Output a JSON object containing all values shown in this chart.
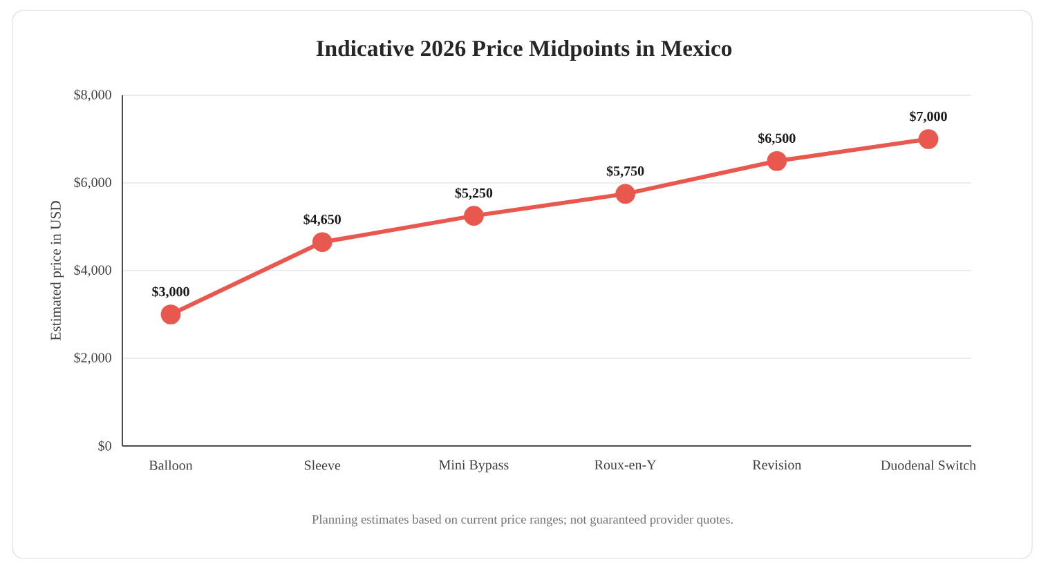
{
  "chart_data": {
    "type": "line",
    "title": "Indicative 2026 Price Midpoints in Mexico",
    "ylabel": "Estimated price in USD",
    "categories": [
      "Balloon",
      "Sleeve",
      "Mini Bypass",
      "Roux-en-Y",
      "Revision",
      "Duodenal Switch"
    ],
    "values": [
      3000,
      4650,
      5250,
      5750,
      6500,
      7000
    ],
    "value_labels": [
      "$3,000",
      "$4,650",
      "$5,250",
      "$5,750",
      "$6,500",
      "$7,000"
    ],
    "color": "#e8584f",
    "marker": "circle",
    "line_style": "solid",
    "ylim": [
      0,
      8000
    ],
    "yticks": [
      {
        "value": 0,
        "label": "$0"
      },
      {
        "value": 2000,
        "label": "$2,000"
      },
      {
        "value": 4000,
        "label": "$4,000"
      },
      {
        "value": 6000,
        "label": "$6,000"
      },
      {
        "value": 8000,
        "label": "$8,000"
      }
    ],
    "grid": "y",
    "annotations": [
      "Planning estimates based on current price ranges; not guaranteed provider quotes."
    ]
  }
}
